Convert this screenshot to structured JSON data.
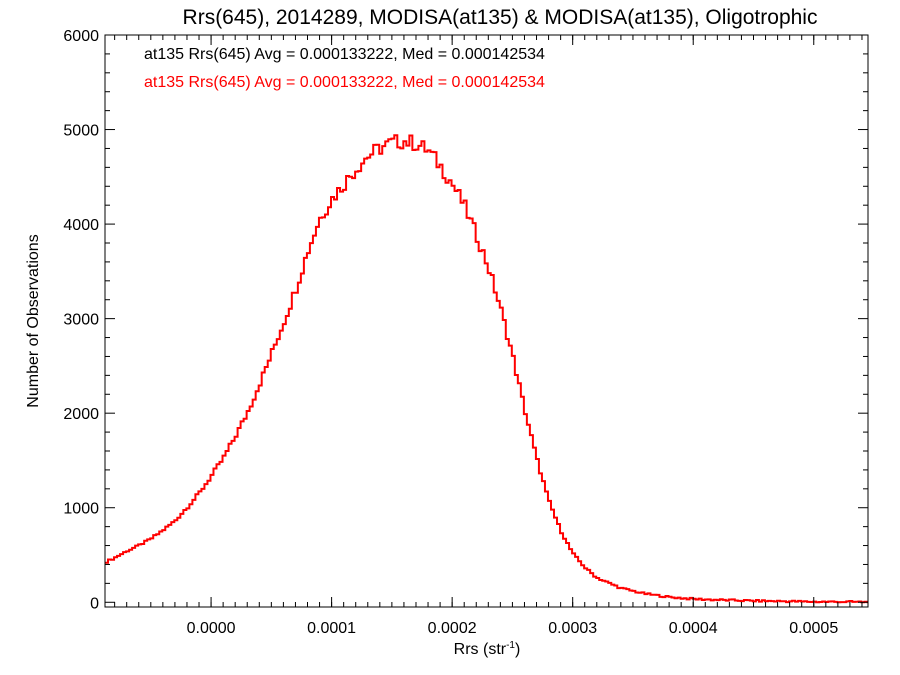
{
  "chart_data": {
    "type": "histogram-step",
    "title": "Rrs(645), 2014289, MODISA(at135) & MODISA(at135), Oligotrophic",
    "xlabel": "Rrs (str",
    "xlabel_sup": "-1",
    "xlabel_close": ")",
    "ylabel": "Number of Observations",
    "xlim": [
      -8.8e-05,
      0.000545
    ],
    "ylim": [
      -50,
      6000
    ],
    "x_ticks": [
      0.0,
      0.0001,
      0.0002,
      0.0003,
      0.0004,
      0.0005
    ],
    "x_tick_labels": [
      "0.0000",
      "0.0001",
      "0.0002",
      "0.0003",
      "0.0004",
      "0.0005"
    ],
    "y_ticks": [
      0,
      1000,
      2000,
      3000,
      4000,
      5000,
      6000
    ],
    "y_tick_labels": [
      "0",
      "1000",
      "2000",
      "3000",
      "4000",
      "5000",
      "6000"
    ],
    "grid": false,
    "legend_placement": "top-left",
    "legend": [
      {
        "text": "at135 Rrs(645) Avg = 0.000133222, Med = 0.000142534",
        "color": "#000000"
      },
      {
        "text": "at135 Rrs(645) Avg = 0.000133222, Med = 0.000142534",
        "color": "#ff0000"
      }
    ],
    "series": [
      {
        "color": "#ff0000",
        "x": [
          -8.8e-05,
          -8e-05,
          -7e-05,
          -6e-05,
          -5e-05,
          -4e-05,
          -3e-05,
          -2e-05,
          -1e-05,
          0.0,
          1e-05,
          2e-05,
          3e-05,
          4e-05,
          5e-05,
          6e-05,
          7e-05,
          8e-05,
          9e-05,
          0.0001,
          0.00011,
          0.00012,
          0.00013,
          0.00014,
          0.00015,
          0.00016,
          0.00017,
          0.00018,
          0.00019,
          0.0002,
          0.00021,
          0.00022,
          0.00023,
          0.00024,
          0.00025,
          0.00026,
          0.00027,
          0.00028,
          0.00029,
          0.0003,
          0.00031,
          0.00032,
          0.00034,
          0.00036,
          0.00038,
          0.0004,
          0.00042,
          0.00045,
          0.00048,
          0.0005,
          0.00052,
          0.000545
        ],
        "y": [
          420,
          470,
          540,
          600,
          670,
          760,
          860,
          1000,
          1150,
          1330,
          1520,
          1750,
          2000,
          2300,
          2620,
          2950,
          3300,
          3700,
          4050,
          4260,
          4420,
          4580,
          4720,
          4800,
          4860,
          4880,
          4850,
          4780,
          4620,
          4430,
          4200,
          3890,
          3550,
          3120,
          2620,
          2050,
          1530,
          1080,
          760,
          520,
          370,
          260,
          150,
          90,
          55,
          35,
          25,
          15,
          10,
          5,
          5,
          3
        ]
      }
    ]
  }
}
